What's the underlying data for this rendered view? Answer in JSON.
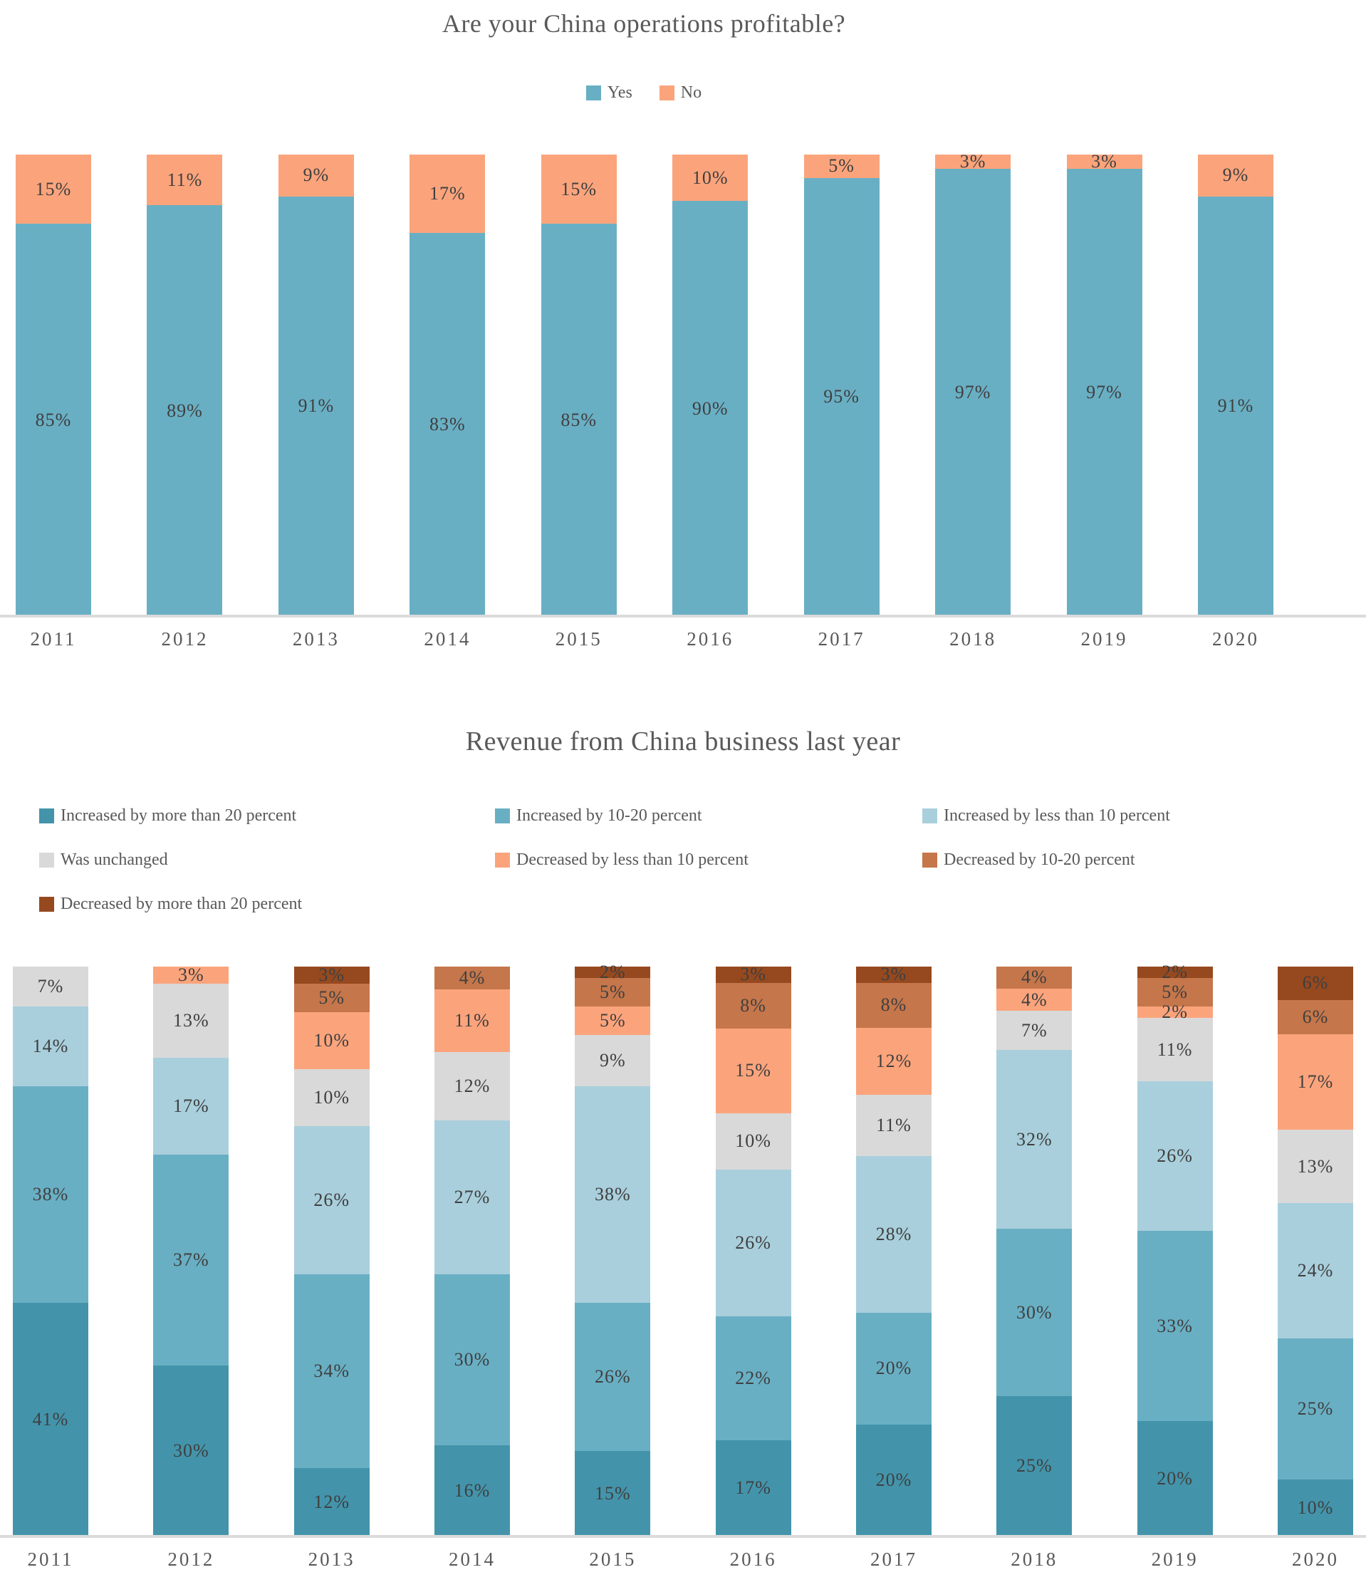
{
  "styles": {
    "background": "#ffffff",
    "title_color": "#595959",
    "segment_label_color": "#3f3f3f",
    "axis_label_color": "#595959",
    "axis_line_color": "#dbdbdb"
  },
  "chart_data": [
    {
      "type": "bar",
      "stacked": true,
      "percent_stacked": true,
      "title": "Are your China operations profitable?",
      "legend_position": "top-center",
      "grid": false,
      "value_suffix": "%",
      "categories": [
        "2011",
        "2012",
        "2013",
        "2014",
        "2015",
        "2016",
        "2017",
        "2018",
        "2019",
        "2020"
      ],
      "series": [
        {
          "name": "Yes",
          "color": "#69afc4",
          "values": [
            85,
            89,
            91,
            83,
            85,
            90,
            95,
            97,
            97,
            91
          ]
        },
        {
          "name": "No",
          "color": "#fba47c",
          "values": [
            15,
            11,
            9,
            17,
            15,
            10,
            5,
            3,
            3,
            9
          ]
        }
      ]
    },
    {
      "type": "bar",
      "stacked": true,
      "percent_stacked": true,
      "title": "Revenue from China business last year",
      "legend_position": "top-left-3-columns",
      "grid": false,
      "value_suffix": "%",
      "categories": [
        "2011",
        "2012",
        "2013",
        "2014",
        "2015",
        "2016",
        "2017",
        "2018",
        "2019",
        "2020"
      ],
      "series": [
        {
          "name": "Increased by more than 20 percent",
          "color": "#4394ab",
          "values": [
            41,
            30,
            12,
            16,
            15,
            17,
            20,
            25,
            20,
            10
          ]
        },
        {
          "name": "Increased by 10-20 percent",
          "color": "#69afc4",
          "values": [
            38,
            37,
            34,
            30,
            26,
            22,
            20,
            30,
            33,
            25
          ]
        },
        {
          "name": "Increased by less than 10 percent",
          "color": "#a9cfdc",
          "values": [
            14,
            17,
            26,
            27,
            38,
            26,
            28,
            32,
            26,
            24
          ]
        },
        {
          "name": "Was unchanged",
          "color": "#d9d9d9",
          "values": [
            7,
            13,
            10,
            12,
            9,
            10,
            11,
            7,
            11,
            13
          ]
        },
        {
          "name": "Decreased by less than 10 percent",
          "color": "#fba47c",
          "values": [
            0,
            3,
            10,
            11,
            5,
            15,
            12,
            4,
            2,
            17
          ]
        },
        {
          "name": "Decreased by 10-20 percent",
          "color": "#c5764a",
          "values": [
            0,
            0,
            5,
            4,
            5,
            8,
            8,
            4,
            5,
            6
          ]
        },
        {
          "name": "Decreased by more than 20 percent",
          "color": "#96491f",
          "values": [
            0,
            0,
            3,
            0,
            2,
            3,
            3,
            0,
            2,
            6
          ]
        }
      ]
    }
  ]
}
